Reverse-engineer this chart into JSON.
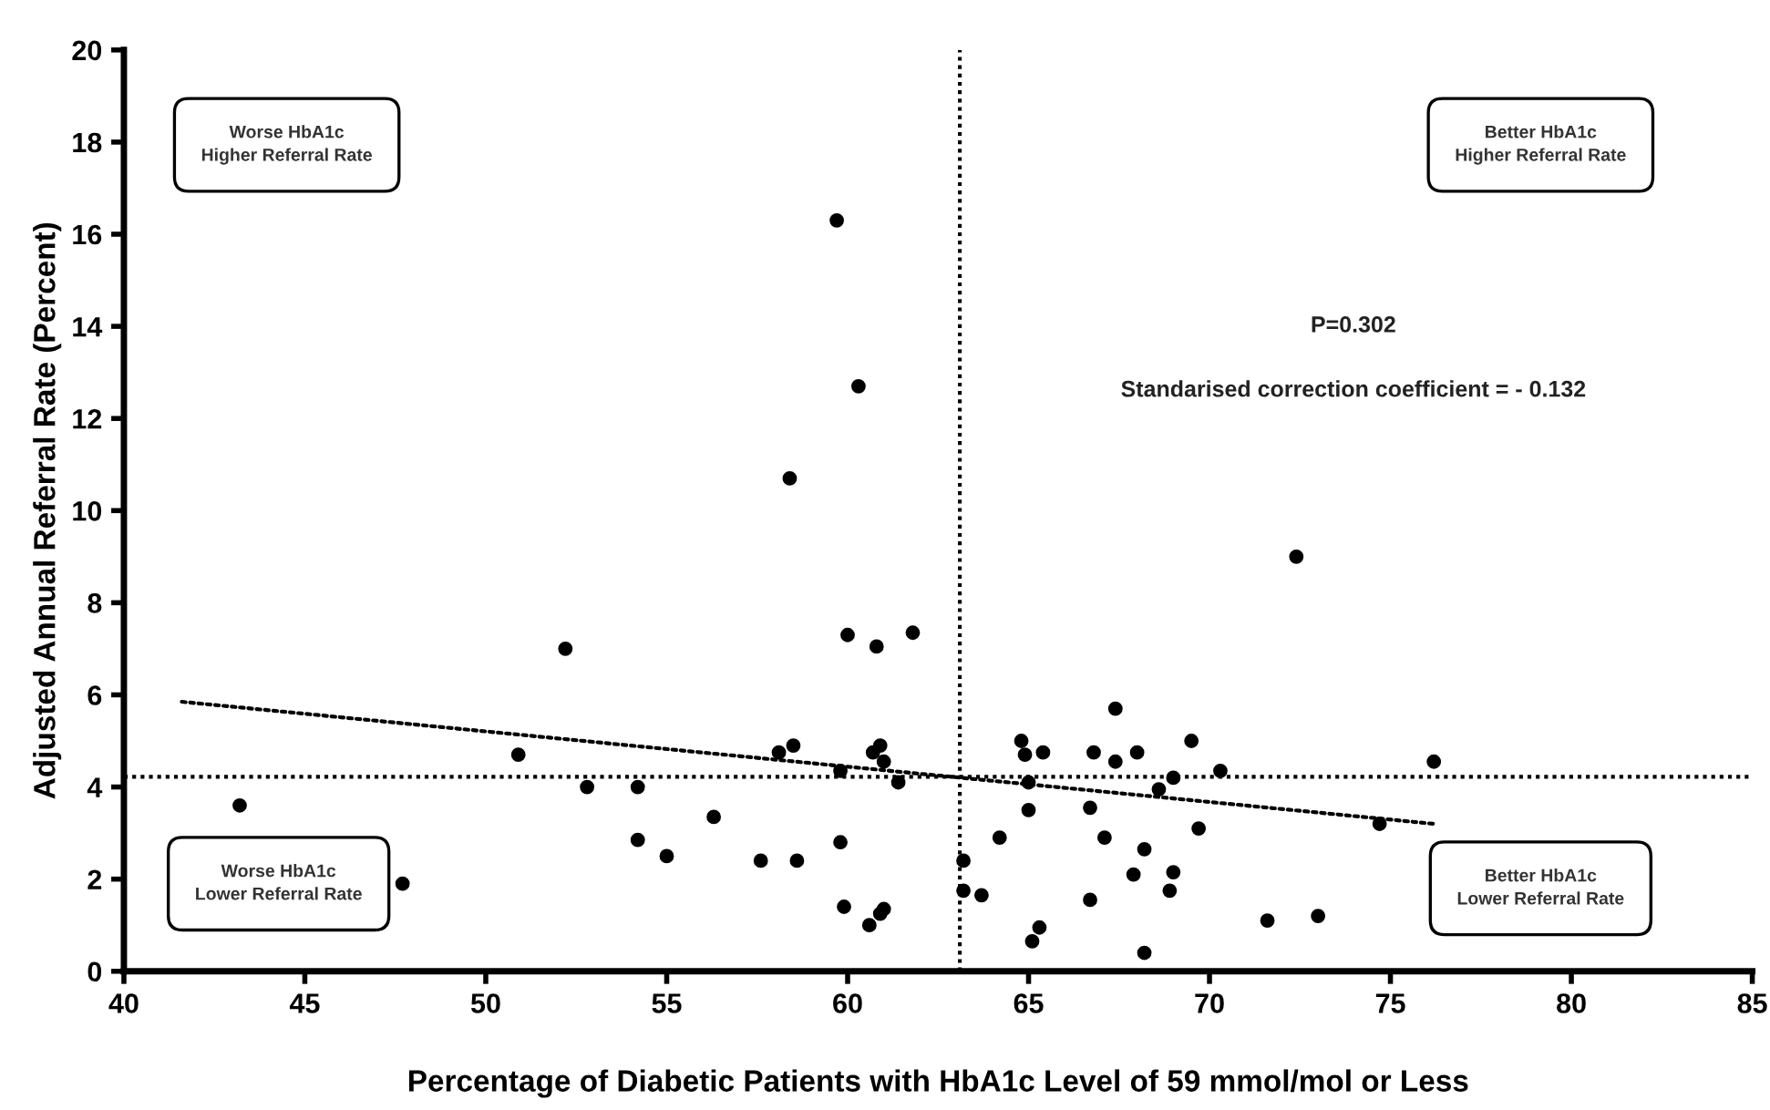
{
  "chart_data": {
    "type": "scatter",
    "xlabel": "Percentage of Diabetic Patients with HbA1c Level of 59 mmol/mol or Less",
    "ylabel": "Adjusted Annual Referral Rate (Percent)",
    "xlim": [
      40,
      85
    ],
    "xticks": [
      40,
      45,
      50,
      55,
      60,
      65,
      70,
      75,
      80,
      85
    ],
    "ylim": [
      0,
      20
    ],
    "yticks": [
      0,
      2,
      4,
      6,
      8,
      10,
      12,
      14,
      16,
      18,
      20
    ],
    "grid": false,
    "marker": "circle",
    "series": [
      {
        "color": "#000000",
        "x": [
          43.2,
          47.7,
          50.9,
          52.2,
          52.8,
          54.2,
          54.2,
          55.0,
          56.3,
          57.6,
          58.1,
          58.5,
          58.6,
          58.4,
          59.7,
          59.8,
          59.8,
          59.9,
          60.0,
          60.3,
          60.6,
          60.7,
          60.8,
          60.9,
          60.9,
          61.0,
          61.0,
          61.4,
          61.8,
          63.2,
          63.2,
          63.7,
          64.2,
          64.8,
          64.9,
          65.0,
          65.0,
          65.1,
          65.3,
          65.4,
          66.7,
          66.7,
          66.8,
          67.1,
          67.4,
          67.4,
          67.9,
          68.0,
          68.2,
          68.2,
          68.6,
          68.9,
          69.0,
          69.0,
          69.5,
          69.7,
          70.3,
          71.6,
          72.4,
          73.0,
          74.7,
          76.2
        ],
        "values": [
          3.6,
          1.9,
          4.7,
          7.0,
          4.0,
          4.0,
          2.85,
          2.5,
          3.35,
          2.4,
          4.75,
          4.9,
          2.4,
          10.7,
          16.3,
          2.8,
          4.35,
          1.4,
          7.3,
          12.7,
          1.0,
          4.75,
          7.05,
          4.9,
          1.25,
          4.55,
          1.35,
          4.1,
          7.35,
          2.4,
          1.75,
          1.65,
          2.9,
          5.0,
          4.7,
          4.1,
          3.5,
          0.65,
          0.95,
          4.75,
          3.55,
          1.55,
          4.75,
          2.9,
          5.7,
          4.55,
          2.1,
          4.75,
          2.65,
          0.4,
          3.95,
          1.75,
          2.15,
          4.2,
          5.0,
          3.1,
          4.35,
          1.1,
          9.0,
          1.2,
          3.2,
          4.55
        ]
      },
      {
        "type": "line",
        "color": "#000000",
        "line_style": "dotted",
        "marker": "none",
        "x": [
          41.6,
          76.2
        ],
        "values": [
          5.85,
          3.2
        ]
      }
    ],
    "ref_lines": [
      {
        "axis": "x",
        "value": 63.1,
        "line_style": "dotted",
        "color": "#000000"
      },
      {
        "axis": "y",
        "value": 4.22,
        "line_style": "dotted",
        "color": "#000000"
      }
    ],
    "annotations": [
      "Worse HbA1c\nHigher Referral Rate",
      "Better HbA1c\nHigher Referral Rate",
      "Worse HbA1c\nLower Referral Rate",
      "Better HbA1c\nLower Referral Rate",
      "P=0.302",
      "Standarised correction coefficient = - 0.132"
    ]
  }
}
